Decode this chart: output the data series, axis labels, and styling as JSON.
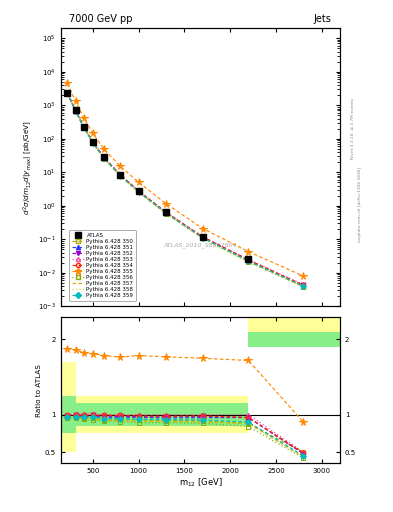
{
  "title_left": "7000 GeV pp",
  "title_right": "Jets",
  "ylabel_main": "$d^2\\sigma/dm_{12}d|y_{\\mathrm{max}}|$ [pb/GeV]",
  "ylabel_ratio": "Ratio to ATLAS",
  "xlabel": "m$_{12}$ [GeV]",
  "watermark": "ATLAS_2010_S8817804",
  "rivet_text": "Rivet 3.1.10; ≥ 2.7M events",
  "arxiv_text": "mcplots.cern.ch [arXiv:1306.3436]",
  "x_values": [
    220,
    310,
    400,
    500,
    620,
    800,
    1000,
    1300,
    1700,
    2200,
    2800
  ],
  "series": [
    {
      "label": "ATLAS",
      "color": "#000000",
      "marker": "s",
      "markerfacecolor": "#000000",
      "linestyle": "none",
      "y_main": [
        2400,
        700,
        230,
        80,
        28,
        8.5,
        2.8,
        0.65,
        0.12,
        0.025,
        null
      ],
      "y_ratio": [
        null,
        null,
        null,
        null,
        null,
        null,
        null,
        null,
        null,
        null,
        null
      ]
    },
    {
      "label": "Pythia 6.428 350",
      "color": "#aaaa00",
      "marker": "s",
      "markerfacecolor": "none",
      "linestyle": "--",
      "y_main": [
        2300,
        680,
        220,
        76,
        26,
        8.0,
        2.6,
        0.6,
        0.11,
        0.022,
        0.004
      ],
      "y_ratio": [
        0.96,
        0.97,
        0.96,
        0.95,
        0.93,
        0.94,
        0.93,
        0.92,
        0.92,
        0.88,
        0.5
      ]
    },
    {
      "label": "Pythia 6.428 351",
      "color": "#3333ff",
      "marker": "^",
      "markerfacecolor": "#3333ff",
      "linestyle": "--",
      "y_main": [
        2350,
        690,
        225,
        78,
        27,
        8.2,
        2.7,
        0.62,
        0.115,
        0.024,
        0.004
      ],
      "y_ratio": [
        0.979,
        0.986,
        0.978,
        0.975,
        0.964,
        0.965,
        0.964,
        0.954,
        0.958,
        0.96,
        0.48
      ]
    },
    {
      "label": "Pythia 6.428 352",
      "color": "#9900cc",
      "marker": "v",
      "markerfacecolor": "#9900cc",
      "linestyle": "--",
      "y_main": [
        2360,
        695,
        227,
        79,
        27.5,
        8.3,
        2.72,
        0.63,
        0.117,
        0.024,
        0.0042
      ],
      "y_ratio": [
        0.983,
        0.993,
        0.987,
        0.988,
        0.982,
        0.976,
        0.971,
        0.969,
        0.975,
        0.96,
        0.48
      ]
    },
    {
      "label": "Pythia 6.428 353",
      "color": "#ff44aa",
      "marker": "^",
      "markerfacecolor": "none",
      "linestyle": ":",
      "y_main": [
        2390,
        705,
        232,
        81,
        28,
        8.5,
        2.8,
        0.65,
        0.12,
        0.025,
        0.0045
      ],
      "y_ratio": [
        0.996,
        1.007,
        1.009,
        1.013,
        1.0,
        1.0,
        1.0,
        1.0,
        1.0,
        1.0,
        0.5
      ]
    },
    {
      "label": "Pythia 6.428 354",
      "color": "#ff2200",
      "marker": "o",
      "markerfacecolor": "none",
      "linestyle": "--",
      "y_main": [
        2370,
        698,
        228,
        79.5,
        27.8,
        8.4,
        2.75,
        0.635,
        0.118,
        0.024,
        0.0043
      ],
      "y_ratio": [
        0.988,
        0.997,
        0.991,
        0.994,
        0.993,
        0.988,
        0.982,
        0.977,
        0.983,
        0.96,
        0.49
      ]
    },
    {
      "label": "Pythia 6.428 355",
      "color": "#ff8800",
      "marker": "*",
      "markerfacecolor": "#ff8800",
      "linestyle": "--",
      "y_main": [
        4500,
        1300,
        420,
        145,
        50,
        15,
        5.0,
        1.15,
        0.21,
        0.043,
        0.008
      ],
      "y_ratio": [
        1.875,
        1.857,
        1.826,
        1.813,
        1.786,
        1.765,
        1.786,
        1.769,
        1.75,
        1.72,
        0.9
      ]
    },
    {
      "label": "Pythia 6.428 356",
      "color": "#88aa00",
      "marker": "s",
      "markerfacecolor": "none",
      "linestyle": ":",
      "y_main": [
        2280,
        670,
        215,
        74,
        25.5,
        7.7,
        2.5,
        0.58,
        0.106,
        0.021,
        0.0038
      ],
      "y_ratio": [
        0.95,
        0.957,
        0.935,
        0.925,
        0.911,
        0.906,
        0.893,
        0.892,
        0.883,
        0.84,
        0.42
      ]
    },
    {
      "label": "Pythia 6.428 357",
      "color": "#ddaa00",
      "marker": null,
      "markerfacecolor": "#ddaa00",
      "linestyle": "--",
      "y_main": [
        2290,
        675,
        217,
        75,
        26,
        7.8,
        2.55,
        0.59,
        0.108,
        0.022,
        0.0039
      ],
      "y_ratio": [
        0.954,
        0.964,
        0.943,
        0.938,
        0.929,
        0.918,
        0.911,
        0.908,
        0.9,
        0.88,
        0.44
      ]
    },
    {
      "label": "Pythia 6.428 358",
      "color": "#ccdd33",
      "marker": null,
      "markerfacecolor": "#ccdd33",
      "linestyle": ":",
      "y_main": [
        2295,
        677,
        218,
        75.5,
        26.2,
        7.85,
        2.56,
        0.592,
        0.109,
        0.0221,
        0.00392
      ],
      "y_ratio": [
        0.956,
        0.967,
        0.948,
        0.944,
        0.936,
        0.924,
        0.914,
        0.911,
        0.908,
        0.884,
        0.44
      ]
    },
    {
      "label": "Pythia 6.428 359",
      "color": "#00bbbb",
      "marker": "D",
      "markerfacecolor": "#00bbbb",
      "linestyle": "--",
      "y_main": [
        2310,
        682,
        221,
        77,
        26.5,
        8.0,
        2.62,
        0.605,
        0.111,
        0.0225,
        0.004
      ],
      "y_ratio": [
        0.963,
        0.974,
        0.961,
        0.963,
        0.946,
        0.941,
        0.936,
        0.931,
        0.925,
        0.9,
        0.45
      ]
    }
  ],
  "band_bins": [
    150,
    310,
    500,
    800,
    1300,
    2200,
    3200
  ],
  "yellow_lo": [
    0.5,
    0.75,
    0.75,
    0.75,
    0.75,
    2.0,
    2.0
  ],
  "yellow_hi": [
    1.7,
    1.25,
    1.25,
    1.25,
    1.25,
    2.5,
    2.5
  ],
  "green_lo": [
    0.75,
    0.85,
    0.85,
    0.85,
    0.85,
    1.9,
    1.9
  ],
  "green_hi": [
    1.25,
    1.15,
    1.15,
    1.15,
    1.15,
    2.1,
    2.1
  ],
  "xlim": [
    150,
    3200
  ],
  "ylim_main": [
    0.001,
    200000.0
  ],
  "ylim_ratio": [
    0.35,
    2.3
  ],
  "ratio_yticks": [
    0.5,
    1.0,
    2.0
  ],
  "ratio_yticklabels": [
    "0.5",
    "1",
    "2"
  ],
  "bg_color": "#ffffff"
}
